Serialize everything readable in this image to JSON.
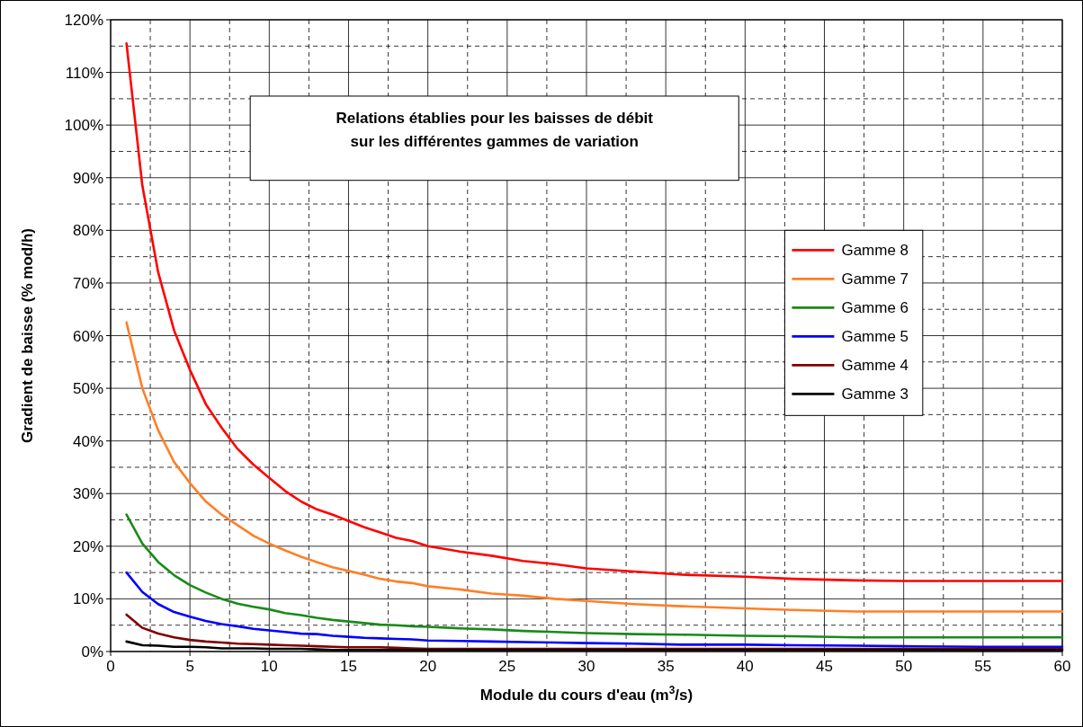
{
  "chart_data": {
    "type": "line",
    "title": "Relations établies pour les baisses de débit sur les différentes gammes de variation",
    "xlabel": "Module du cours d'eau (m$^{3}$/s)",
    "ylabel": "Gradient de baisse (% mod/h)",
    "x": [
      1,
      2,
      3,
      4,
      5,
      6,
      7,
      8,
      9,
      10,
      11,
      12,
      13,
      14,
      15,
      16,
      17,
      18,
      19,
      20,
      22,
      24,
      26,
      28,
      30,
      33,
      36,
      40,
      43,
      47,
      50,
      55,
      60
    ],
    "series": [
      {
        "name": "Gamme 8",
        "color": "#ff0000",
        "values": [
          115.5,
          88.5,
          72,
          61,
          53.5,
          47,
          42.5,
          38.5,
          35.5,
          33,
          30.5,
          28.5,
          27,
          26,
          24.8,
          23.6,
          22.6,
          21.6,
          21,
          20,
          19,
          18.2,
          17.2,
          16.6,
          15.8,
          15.2,
          14.6,
          14.2,
          13.8,
          13.5,
          13.4,
          13.4,
          13.4
        ]
      },
      {
        "name": "Gamme 7",
        "color": "#ff7f27",
        "values": [
          62.5,
          50,
          42,
          36,
          32,
          28.5,
          26,
          24,
          22,
          20.5,
          19.2,
          18,
          17,
          16,
          15.3,
          14.6,
          13.8,
          13.3,
          13,
          12.4,
          11.8,
          11,
          10.6,
          10,
          9.6,
          9,
          8.6,
          8.2,
          7.9,
          7.6,
          7.6,
          7.6,
          7.6
        ]
      },
      {
        "name": "Gamme 6",
        "color": "#1a8a1a",
        "values": [
          26,
          20.5,
          17,
          14.5,
          12.6,
          11.2,
          10,
          9.1,
          8.5,
          8,
          7.3,
          6.9,
          6.4,
          6,
          5.7,
          5.4,
          5.1,
          5,
          4.8,
          4.7,
          4.4,
          4.2,
          3.9,
          3.7,
          3.5,
          3.3,
          3.2,
          3,
          2.9,
          2.7,
          2.7,
          2.7,
          2.7
        ]
      },
      {
        "name": "Gamme 5",
        "color": "#0000ff",
        "values": [
          15,
          11.3,
          9,
          7.5,
          6.6,
          5.8,
          5.2,
          4.8,
          4.3,
          4,
          3.7,
          3.4,
          3.3,
          3,
          2.8,
          2.6,
          2.5,
          2.4,
          2.3,
          2.1,
          2,
          1.9,
          1.8,
          1.7,
          1.6,
          1.5,
          1.3,
          1.3,
          1.2,
          1.1,
          1,
          0.9,
          0.9
        ]
      },
      {
        "name": "Gamme 4",
        "color": "#800000",
        "values": [
          7,
          4.5,
          3.4,
          2.7,
          2.2,
          1.9,
          1.7,
          1.5,
          1.4,
          1.3,
          1.2,
          1.1,
          1,
          0.9,
          0.8,
          0.8,
          0.8,
          0.7,
          0.6,
          0.5,
          0.5,
          0.5,
          0.5,
          0.5,
          0.5,
          0.5,
          0.5,
          0.5,
          0.5,
          0.5,
          0.5,
          0.5,
          0.5
        ]
      },
      {
        "name": "Gamme 3",
        "color": "#000000",
        "values": [
          1.9,
          1.2,
          1.1,
          0.9,
          0.9,
          0.8,
          0.6,
          0.6,
          0.6,
          0.5,
          0.5,
          0.5,
          0.4,
          0.3,
          0.3,
          0.3,
          0.3,
          0.3,
          0.3,
          0.3,
          0.3,
          0.3,
          0.3,
          0.3,
          0.3,
          0.3,
          0.3,
          0.3,
          0.3,
          0.3,
          0.3,
          0.3,
          0.3
        ]
      }
    ],
    "xlim": [
      0,
      60
    ],
    "ylim": [
      0,
      120
    ],
    "xticks": [
      0,
      {
        "value": 2.5,
        "label": null
      },
      5,
      {
        "value": 7.5,
        "label": null
      },
      10,
      {
        "value": 12.5,
        "label": null
      },
      15,
      {
        "value": 17.5,
        "label": null
      },
      20,
      {
        "value": 22.5,
        "label": null
      },
      25,
      {
        "value": 27.5,
        "label": null
      },
      30,
      {
        "value": 32.5,
        "label": null
      },
      35,
      {
        "value": 37.5,
        "label": null
      },
      40,
      {
        "value": 42.5,
        "label": null
      },
      45,
      {
        "value": 47.5,
        "label": null
      },
      50,
      {
        "value": 52.5,
        "label": null
      },
      55,
      {
        "value": 57.5,
        "label": null
      },
      60
    ],
    "yticks": [
      {
        "value": 0,
        "label": "0%"
      },
      {
        "value": 5,
        "label": null
      },
      {
        "value": 10,
        "label": "10%"
      },
      {
        "value": 15,
        "label": null
      },
      {
        "value": 20,
        "label": "20%"
      },
      {
        "value": 25,
        "label": null
      },
      {
        "value": 30,
        "label": "30%"
      },
      {
        "value": 35,
        "label": null
      },
      {
        "value": 40,
        "label": "40%"
      },
      {
        "value": 45,
        "label": null
      },
      {
        "value": 50,
        "label": "50%"
      },
      {
        "value": 55,
        "label": null
      },
      {
        "value": 60,
        "label": "60%"
      },
      {
        "value": 65,
        "label": null
      },
      {
        "value": 70,
        "label": "70%"
      },
      {
        "value": 75,
        "label": null
      },
      {
        "value": 80,
        "label": "80%"
      },
      {
        "value": 85,
        "label": null
      },
      {
        "value": 90,
        "label": "90%"
      },
      {
        "value": 95,
        "label": null
      },
      {
        "value": 100,
        "label": "100%"
      },
      {
        "value": 105,
        "label": null
      },
      {
        "value": 110,
        "label": "110%"
      },
      {
        "value": 115,
        "label": null
      },
      {
        "value": 120,
        "label": "120%"
      }
    ],
    "grid": true,
    "legend": "right",
    "marker": "none",
    "line_style": "solid"
  }
}
